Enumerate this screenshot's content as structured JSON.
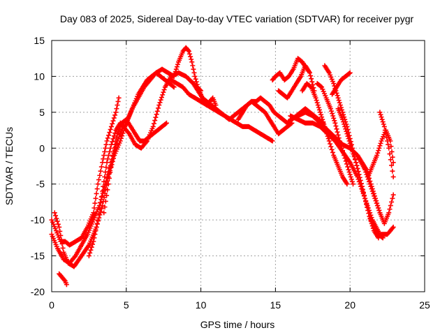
{
  "chart_data": {
    "type": "scatter",
    "title": "Day 083 of 2025, Sidereal Day-to-day VTEC variation (SDTVAR) for receiver pygr",
    "xlabel": "GPS time / hours",
    "ylabel": "SDTVAR / TECUs",
    "xlim": [
      0,
      25
    ],
    "ylim": [
      -20,
      15
    ],
    "xticks": [
      0,
      5,
      10,
      15,
      20,
      25
    ],
    "yticks": [
      -20,
      -15,
      -10,
      -5,
      0,
      5,
      10,
      15
    ],
    "grid": true,
    "marker": "+",
    "color": "#ff0000",
    "series": [
      {
        "x": [
          0.0,
          0.3,
          0.6,
          0.9,
          1.2,
          1.6,
          2.0,
          2.4,
          2.8,
          3.1,
          3.4,
          3.7,
          4.0,
          4.3,
          4.5
        ],
        "y": [
          -10.0,
          -11.5,
          -13.0,
          -13.0,
          -13.5,
          -13.0,
          -12.5,
          -11.0,
          -9.0,
          -5.0,
          -2.0,
          1.0,
          3.0,
          5.0,
          7.0
        ]
      },
      {
        "x": [
          0.0,
          0.4,
          0.8,
          1.2,
          1.6,
          2.0,
          2.4,
          2.8,
          3.2,
          3.6,
          4.0,
          4.4,
          4.8,
          5.2,
          5.6,
          6.0,
          6.4,
          6.8,
          7.2,
          7.6,
          8.0,
          8.5,
          9.0,
          9.5,
          10.0
        ],
        "y": [
          -12.0,
          -14.0,
          -15.5,
          -16.0,
          -15.0,
          -13.5,
          -12.0,
          -10.0,
          -8.0,
          -5.0,
          -2.0,
          1.0,
          3.0,
          2.0,
          0.5,
          0.0,
          1.0,
          3.0,
          6.0,
          8.5,
          10.0,
          10.5,
          10.0,
          9.0,
          8.0
        ]
      },
      {
        "x": [
          0.2,
          0.5,
          0.8,
          1.1,
          1.5,
          2.0,
          2.5,
          3.0,
          3.4,
          3.8,
          4.2,
          4.6,
          5.0,
          5.4,
          5.8,
          6.2,
          6.6,
          7.0,
          7.4,
          7.8,
          8.2
        ],
        "y": [
          -9.0,
          -11.0,
          -14.5,
          -16.0,
          -16.5,
          -15.0,
          -13.5,
          -11.0,
          -8.0,
          -4.0,
          -1.0,
          1.0,
          3.5,
          5.5,
          7.0,
          8.5,
          9.5,
          10.5,
          11.0,
          10.5,
          10.0
        ]
      },
      {
        "x": [
          2.5,
          2.8,
          3.1,
          3.4,
          3.7,
          4.0,
          4.3,
          4.6,
          4.9,
          5.2,
          5.5,
          5.8,
          6.1,
          6.4,
          6.7,
          7.0,
          7.3,
          7.6,
          7.9,
          8.2
        ],
        "y": [
          -15.0,
          -13.0,
          -10.0,
          -6.0,
          -2.0,
          0.5,
          2.5,
          3.5,
          3.0,
          4.5,
          6.0,
          7.5,
          8.5,
          9.5,
          10.0,
          10.5,
          10.0,
          9.5,
          9.0,
          8.5
        ]
      },
      {
        "x": [
          3.5,
          3.8,
          4.1,
          4.4,
          4.7,
          5.0,
          5.3,
          5.6,
          5.9,
          6.2,
          6.5,
          6.8,
          7.1,
          7.4,
          7.7
        ],
        "y": [
          -9.0,
          -5.0,
          -1.0,
          2.0,
          3.5,
          4.0,
          3.0,
          2.0,
          1.0,
          1.0,
          1.5,
          2.0,
          2.5,
          3.0,
          3.5
        ]
      },
      {
        "x": [
          8.2,
          8.5,
          8.8,
          9.0,
          9.2,
          9.4,
          9.6,
          9.8,
          10.0,
          10.2,
          10.4,
          10.6,
          10.8,
          11.0
        ],
        "y": [
          10.0,
          12.0,
          13.5,
          14.0,
          13.5,
          12.0,
          10.0,
          8.5,
          7.5,
          6.5,
          6.0,
          6.5,
          7.0,
          6.0
        ]
      },
      {
        "x": [
          8.0,
          8.4,
          8.8,
          9.2,
          9.6,
          10.0,
          10.4,
          10.8,
          11.2,
          11.6,
          12.0,
          12.4,
          12.8,
          13.2,
          13.6,
          14.0,
          14.4,
          14.8
        ],
        "y": [
          9.5,
          9.0,
          8.5,
          7.5,
          7.0,
          6.5,
          6.0,
          5.5,
          5.0,
          4.5,
          4.0,
          3.5,
          3.0,
          3.0,
          2.5,
          2.0,
          1.5,
          1.0
        ]
      },
      {
        "x": [
          9.5,
          9.8,
          10.1,
          10.4,
          10.7,
          11.0,
          11.3,
          11.6,
          11.9,
          12.2,
          12.5,
          12.8,
          13.1,
          13.4,
          13.7,
          14.0,
          14.3,
          14.6,
          14.9,
          15.2,
          15.5,
          15.8,
          16.1
        ],
        "y": [
          9.0,
          8.0,
          7.0,
          6.5,
          6.0,
          5.5,
          5.0,
          4.5,
          4.0,
          4.5,
          5.0,
          5.5,
          6.0,
          6.5,
          6.0,
          5.5,
          5.0,
          4.0,
          3.0,
          2.0,
          2.5,
          3.0,
          3.5
        ]
      },
      {
        "x": [
          12.5,
          12.8,
          13.1,
          13.4,
          13.7,
          14.0,
          14.3,
          14.6,
          14.9,
          15.2,
          15.5,
          15.8,
          16.1,
          16.4,
          16.7,
          17.0,
          17.3,
          17.6,
          17.9,
          18.2
        ],
        "y": [
          4.0,
          5.0,
          6.0,
          6.5,
          6.5,
          7.0,
          6.5,
          6.0,
          5.0,
          4.5,
          4.0,
          3.5,
          4.0,
          4.5,
          5.0,
          5.5,
          5.0,
          4.5,
          4.0,
          3.5
        ]
      },
      {
        "x": [
          14.8,
          15.0,
          15.3,
          15.6,
          15.9,
          16.2,
          16.5,
          16.8,
          17.1
        ],
        "y": [
          9.5,
          10.0,
          10.5,
          9.5,
          10.0,
          11.0,
          12.5,
          12.0,
          11.0
        ]
      },
      {
        "x": [
          15.2,
          15.5,
          15.8,
          16.1,
          16.4,
          16.7,
          17.0,
          17.3,
          17.6
        ],
        "y": [
          8.0,
          7.5,
          7.0,
          8.0,
          9.0,
          10.0,
          11.5,
          10.5,
          8.0
        ]
      },
      {
        "x": [
          16.0,
          16.5,
          17.0,
          17.5,
          18.0,
          18.5,
          19.0,
          19.5,
          20.0,
          20.5,
          21.0,
          21.5,
          22.0
        ],
        "y": [
          4.0,
          4.5,
          5.0,
          4.5,
          3.5,
          2.5,
          1.5,
          0.5,
          0.0,
          -1.0,
          -3.0,
          -6.0,
          -9.0
        ]
      },
      {
        "x": [
          16.0,
          16.5,
          17.0,
          17.5,
          18.0,
          18.5,
          19.0,
          19.5,
          20.0,
          20.5,
          21.0,
          21.5,
          22.0,
          22.5,
          22.9
        ],
        "y": [
          4.5,
          4.0,
          3.5,
          3.5,
          3.0,
          2.0,
          1.0,
          -0.5,
          -2.0,
          -4.0,
          -7.0,
          -10.0,
          -12.0,
          -12.0,
          -11.0
        ]
      },
      {
        "x": [
          16.8,
          17.1,
          17.4,
          17.7,
          18.0,
          18.3,
          18.6,
          18.9,
          19.2,
          19.5,
          19.8
        ],
        "y": [
          8.0,
          9.0,
          8.5,
          7.0,
          5.0,
          3.0,
          1.0,
          -1.0,
          -2.5,
          -4.0,
          -5.0
        ]
      },
      {
        "x": [
          17.8,
          18.1,
          18.4,
          18.7,
          19.0,
          19.3,
          19.6,
          19.9,
          20.2
        ],
        "y": [
          9.0,
          8.5,
          7.0,
          5.5,
          3.5,
          1.0,
          -1.0,
          -3.0,
          -5.0
        ]
      },
      {
        "x": [
          18.3,
          18.6,
          18.9,
          19.2,
          19.5,
          19.8,
          20.1,
          20.4,
          20.7,
          21.0,
          21.3,
          21.6,
          21.9
        ],
        "y": [
          11.5,
          10.5,
          9.0,
          7.0,
          5.0,
          3.0,
          0.5,
          -2.0,
          -4.5,
          -7.0,
          -9.5,
          -11.5,
          -12.5
        ]
      },
      {
        "x": [
          18.8,
          19.1,
          19.4,
          19.7,
          20.0
        ],
        "y": [
          7.5,
          8.5,
          9.5,
          10.0,
          10.5
        ]
      },
      {
        "x": [
          19.2,
          19.5,
          19.8,
          20.1,
          20.4,
          20.7,
          21.0,
          21.3,
          21.6,
          21.9,
          22.2
        ],
        "y": [
          5.5,
          4.0,
          2.0,
          0.0,
          -2.0,
          -4.5,
          -7.0,
          -9.5,
          -11.0,
          -12.0,
          -12.5
        ]
      },
      {
        "x": [
          20.5,
          20.8,
          21.1,
          21.4,
          21.7,
          22.0,
          22.3,
          22.6,
          22.9
        ],
        "y": [
          -1.0,
          -2.0,
          -3.0,
          -5.0,
          -7.0,
          -9.0,
          -10.5,
          -9.0,
          -6.5
        ]
      },
      {
        "x": [
          21.2,
          21.5,
          21.8,
          22.1,
          22.4,
          22.7,
          22.9
        ],
        "y": [
          -4.0,
          -2.5,
          -1.0,
          1.0,
          2.5,
          1.0,
          -2.0
        ]
      },
      {
        "x": [
          22.0,
          22.3,
          22.6,
          22.9
        ],
        "y": [
          5.0,
          3.0,
          0.0,
          -4.0
        ]
      },
      {
        "x": [
          0.5,
          0.7,
          0.9,
          1.0
        ],
        "y": [
          -17.5,
          -18.0,
          -18.5,
          -19.0
        ]
      }
    ]
  }
}
